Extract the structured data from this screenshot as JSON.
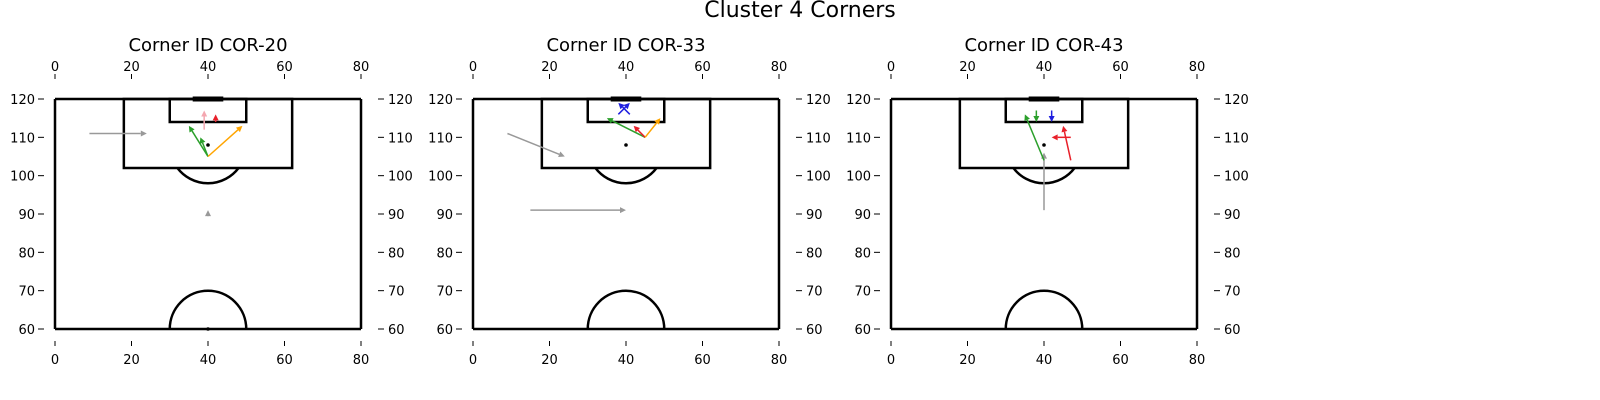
{
  "figure": {
    "title": "Cluster 4 Corners"
  },
  "colors": {
    "pitch": "#000000",
    "grey": "#999999",
    "green": "#2ca02c",
    "orange": "#ffa500",
    "red": "#e8202a",
    "blue": "#1f1fdf",
    "pink": "#f4a7b0",
    "dot": "#000000"
  },
  "chart_data": [
    {
      "type": "scatter",
      "title": "Corner ID COR-20",
      "xlim": [
        0,
        80
      ],
      "ylim": [
        60,
        120
      ],
      "xticks": [
        "0",
        "20",
        "40",
        "60",
        "80"
      ],
      "yticks": [
        "60",
        "70",
        "80",
        "90",
        "100",
        "110",
        "120"
      ],
      "ball_points": [
        [
          40,
          108
        ],
        [
          40,
          60
        ]
      ],
      "arrows": [
        {
          "color": "grey",
          "from": [
            9,
            111
          ],
          "to": [
            24,
            111
          ]
        },
        {
          "color": "grey",
          "from": [
            40,
            90
          ],
          "to": [
            40,
            91
          ]
        },
        {
          "color": "pink",
          "from": [
            39,
            112
          ],
          "to": [
            39,
            117
          ]
        },
        {
          "color": "red",
          "from": [
            42,
            114
          ],
          "to": [
            42,
            116
          ]
        },
        {
          "color": "green",
          "from": [
            40,
            105
          ],
          "to": [
            35,
            113
          ]
        },
        {
          "color": "green",
          "from": [
            40,
            105
          ],
          "to": [
            38,
            110
          ]
        },
        {
          "color": "orange",
          "from": [
            40,
            105
          ],
          "to": [
            49,
            113
          ]
        }
      ]
    },
    {
      "type": "scatter",
      "title": "Corner ID COR-33",
      "xlim": [
        0,
        80
      ],
      "ylim": [
        60,
        120
      ],
      "xticks": [
        "0",
        "20",
        "40",
        "60",
        "80"
      ],
      "yticks": [
        "60",
        "70",
        "80",
        "90",
        "100",
        "110",
        "120"
      ],
      "ball_points": [
        [
          40,
          108
        ]
      ],
      "arrows": [
        {
          "color": "grey",
          "from": [
            9,
            111
          ],
          "to": [
            24,
            105
          ]
        },
        {
          "color": "grey",
          "from": [
            15,
            91
          ],
          "to": [
            40,
            91
          ]
        },
        {
          "color": "blue",
          "from": [
            41,
            116
          ],
          "to": [
            38,
            119
          ]
        },
        {
          "color": "blue",
          "from": [
            38,
            116
          ],
          "to": [
            41,
            119
          ]
        },
        {
          "color": "green",
          "from": [
            45,
            110
          ],
          "to": [
            35,
            115
          ]
        },
        {
          "color": "red",
          "from": [
            45,
            110
          ],
          "to": [
            42,
            113
          ]
        },
        {
          "color": "orange",
          "from": [
            45,
            110
          ],
          "to": [
            49,
            115
          ]
        }
      ]
    },
    {
      "type": "scatter",
      "title": "Corner ID COR-43",
      "xlim": [
        0,
        80
      ],
      "ylim": [
        60,
        120
      ],
      "xticks": [
        "0",
        "20",
        "40",
        "60",
        "80"
      ],
      "yticks": [
        "60",
        "70",
        "80",
        "90",
        "100",
        "110",
        "120"
      ],
      "ball_points": [
        [
          40,
          108
        ]
      ],
      "arrows": [
        {
          "color": "grey",
          "from": [
            40,
            91
          ],
          "to": [
            40,
            106
          ]
        },
        {
          "color": "green",
          "from": [
            40,
            104
          ],
          "to": [
            35,
            116
          ]
        },
        {
          "color": "green",
          "from": [
            38,
            117
          ],
          "to": [
            38,
            114
          ]
        },
        {
          "color": "blue",
          "from": [
            42,
            117
          ],
          "to": [
            42,
            114
          ]
        },
        {
          "color": "red",
          "from": [
            47,
            110
          ],
          "to": [
            42,
            110
          ]
        },
        {
          "color": "red",
          "from": [
            47,
            104
          ],
          "to": [
            45,
            113
          ]
        }
      ]
    }
  ]
}
